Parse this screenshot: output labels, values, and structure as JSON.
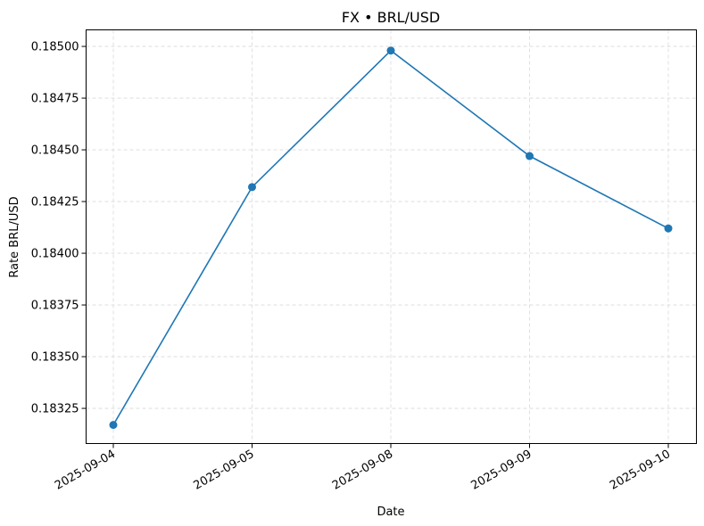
{
  "chart_data": {
    "type": "line",
    "title": "FX • BRL/USD",
    "xlabel": "Date",
    "ylabel": "Rate BRL/USD",
    "categories": [
      "2025-09-04",
      "2025-09-05",
      "2025-09-08",
      "2025-09-09",
      "2025-09-10"
    ],
    "series": [
      {
        "values": [
          0.18317,
          0.18432,
          0.18498,
          0.18447,
          0.18412
        ]
      }
    ],
    "ylim": [
      0.18308,
      0.18508
    ],
    "yticks": [
      0.18325,
      0.1835,
      0.18375,
      0.184,
      0.18425,
      0.1845,
      0.18475,
      0.185
    ],
    "ytick_labels": [
      "0.18325",
      "0.18350",
      "0.18375",
      "0.18400",
      "0.18425",
      "0.18450",
      "0.18475",
      "0.18500"
    ],
    "grid": true,
    "markers": "circle",
    "colors": {
      "series": "#1f77b4",
      "grid": "#d9d9d9"
    }
  }
}
